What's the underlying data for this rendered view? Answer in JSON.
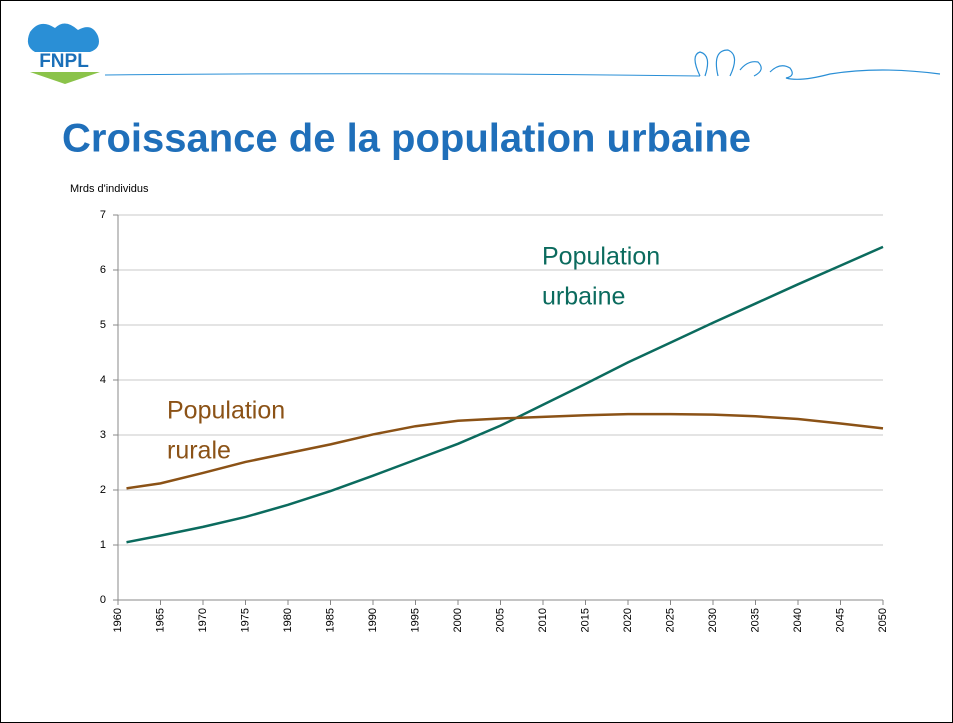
{
  "logo": {
    "text": "FNPL"
  },
  "title": "Croissance de la population urbaine",
  "chart_data": {
    "type": "line",
    "ylabel": "Mrds d'individus",
    "x": [
      1961,
      1965,
      1970,
      1975,
      1980,
      1985,
      1990,
      1995,
      2000,
      2005,
      2010,
      2015,
      2020,
      2025,
      2030,
      2035,
      2040,
      2045,
      2050
    ],
    "series": [
      {
        "name": "Population urbaine",
        "color": "#0b6b5e",
        "values": [
          1.05,
          1.17,
          1.33,
          1.51,
          1.73,
          1.98,
          2.26,
          2.55,
          2.84,
          3.17,
          3.55,
          3.93,
          4.32,
          4.68,
          5.04,
          5.39,
          5.74,
          6.08,
          6.42
        ]
      },
      {
        "name": "Population rurale",
        "color": "#8b5216",
        "values": [
          2.03,
          2.12,
          2.31,
          2.51,
          2.67,
          2.83,
          3.01,
          3.16,
          3.26,
          3.3,
          3.33,
          3.36,
          3.38,
          3.38,
          3.37,
          3.34,
          3.29,
          3.21,
          3.12
        ]
      }
    ],
    "annotations": [
      {
        "lines": [
          "Population",
          "urbaine"
        ],
        "series": 0
      },
      {
        "lines": [
          "Population",
          "rurale"
        ],
        "series": 1
      }
    ],
    "xlim": [
      1960,
      2050
    ],
    "xticks": [
      1960,
      1965,
      1970,
      1975,
      1980,
      1985,
      1990,
      1995,
      2000,
      2005,
      2010,
      2015,
      2020,
      2025,
      2030,
      2035,
      2040,
      2045,
      2050
    ],
    "ylim": [
      0,
      7
    ],
    "yticks": [
      0,
      1,
      2,
      3,
      4,
      5,
      6,
      7
    ],
    "grid": true
  }
}
